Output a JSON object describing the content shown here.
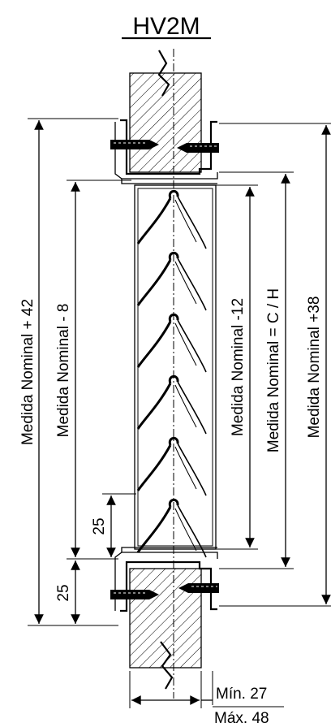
{
  "title": "HV2M",
  "dimensions": {
    "nominal_plus_42": "Medida Nominal + 42",
    "nominal_minus_8": "Medida Nominal - 8",
    "nominal_minus_12": "Medida Nominal -12",
    "nominal_ch": "Medida Nominal = C / H",
    "nominal_plus_38": "Medida Nominal +38",
    "gap_25_upper": "25",
    "gap_25_lower": "25",
    "min_depth": "Mín. 27",
    "max_depth": "Máx. 48"
  },
  "blade_count": 6,
  "colors": {
    "ink": "#000000",
    "background": "#ffffff"
  }
}
